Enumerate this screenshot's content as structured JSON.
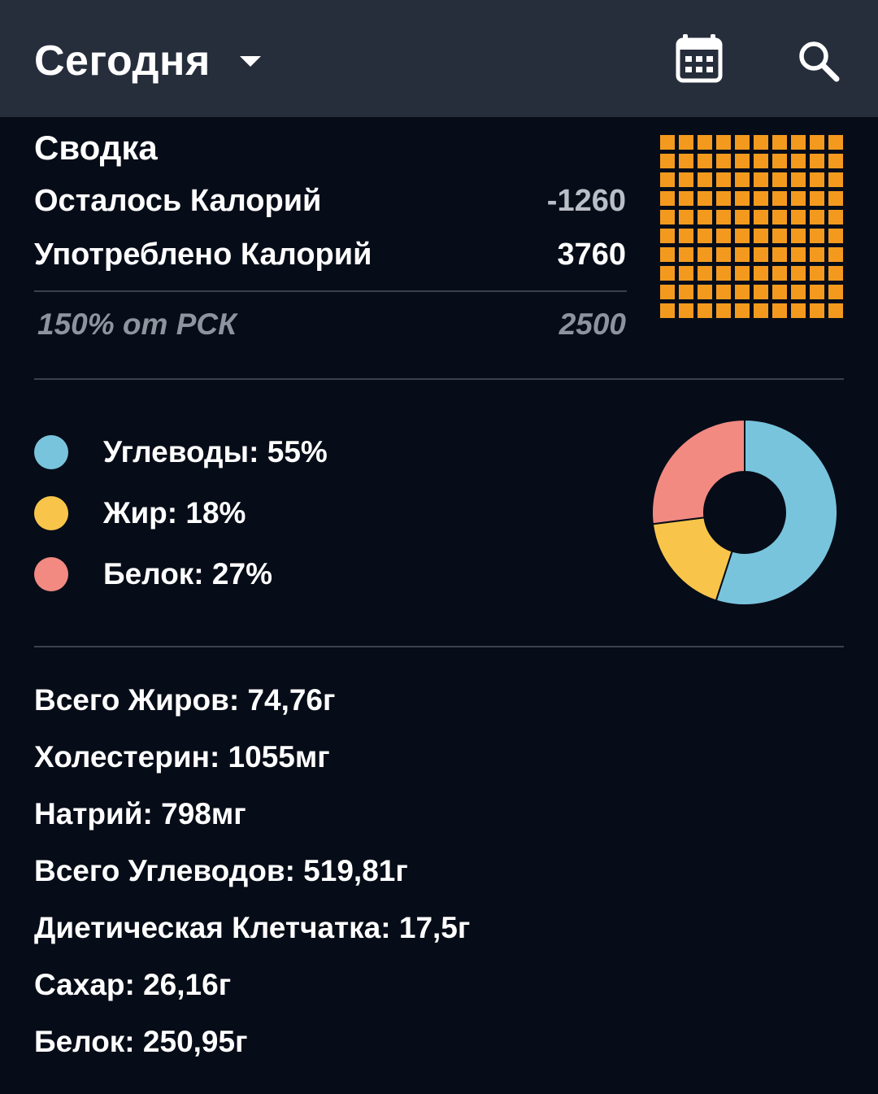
{
  "header": {
    "title": "Сегодня",
    "calendar_icon": "calendar-icon",
    "search_icon": "search-icon"
  },
  "summary": {
    "heading": "Сводка",
    "remaining_label": "Осталось Калорий",
    "remaining_value": "-1260",
    "consumed_label": "Употреблено Калорий",
    "consumed_value": "3760",
    "rsk_label": "150% от РСК",
    "rsk_value": "2500",
    "grid_color": "#f39a1e",
    "grid_fraction": 1.0
  },
  "macros": [
    {
      "label": "Углеводы: 55%",
      "percent": 55,
      "color": "#79c4dd"
    },
    {
      "label": "Жир: 18%",
      "percent": 18,
      "color": "#f8c54a"
    },
    {
      "label": "Белок: 27%",
      "percent": 27,
      "color": "#f28a82"
    }
  ],
  "nutrients": [
    "Всего Жиров: 74,76г",
    "Холестерин: 1055мг",
    "Натрий: 798мг",
    "Всего Углеводов: 519,81г",
    "Диетическая Клетчатка: 17,5г",
    "Сахар: 26,16г",
    "Белок: 250,95г"
  ],
  "colors": {
    "background": "#070d18",
    "appbar": "#262d3b"
  }
}
